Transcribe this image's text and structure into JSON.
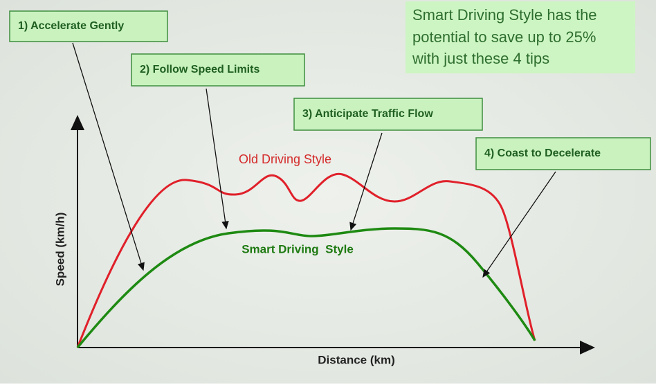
{
  "headline": [
    "Smart Driving Style has the",
    "potential to save up to 25%",
    "with just these 4 tips"
  ],
  "tips": [
    "1) Accelerate Gently",
    "2) Follow Speed Limits",
    "3) Anticipate Traffic Flow",
    "4) Coast to Decelerate"
  ],
  "curves": {
    "old": "Old Driving Style",
    "smart": "Smart Driving  Style"
  },
  "axes": {
    "x": "Distance (km)",
    "y": "Speed (km/h)"
  }
}
